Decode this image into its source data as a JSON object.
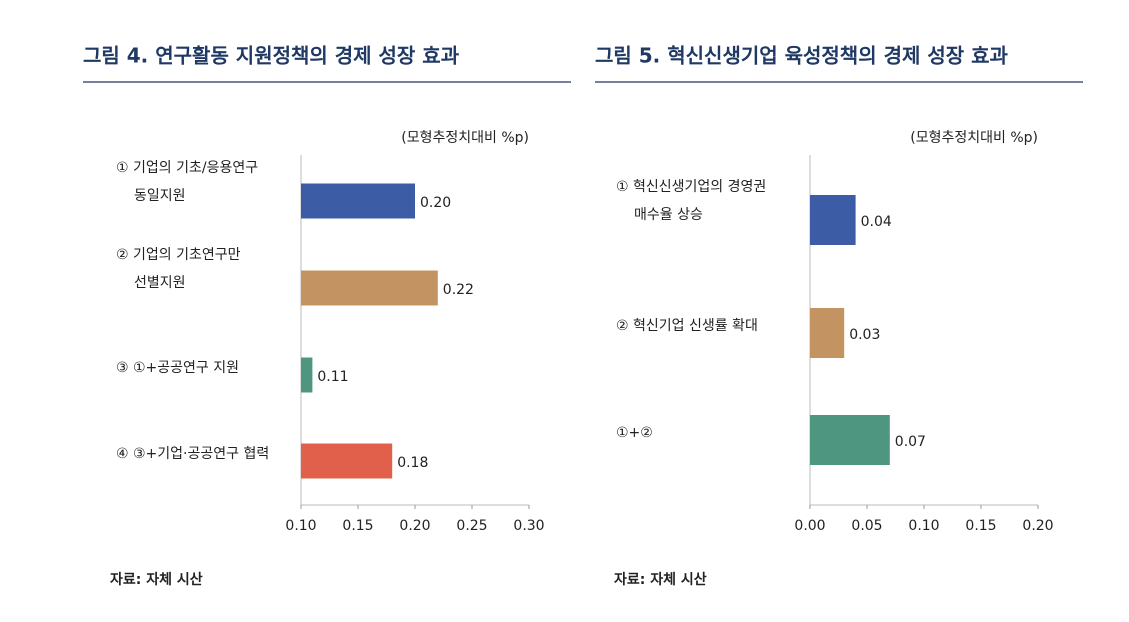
{
  "chart_data": [
    {
      "type": "bar",
      "orientation": "horizontal",
      "title": "그림 4. 연구활동 지원정책의 경제 성장 효과",
      "unit": "(모형추정치대비 %p)",
      "categories": [
        [
          "① 기업의 기초/응용연구",
          "동일지원"
        ],
        [
          "② 기업의 기초연구만",
          "선별지원"
        ],
        [
          "③ ①+공공연구 지원"
        ],
        [
          "④ ③+기업·공공연구 협력"
        ]
      ],
      "values": [
        0.2,
        0.22,
        0.11,
        0.18
      ],
      "value_labels": [
        "0.20",
        "0.22",
        "0.11",
        "0.18"
      ],
      "colors": [
        "#3c5da6",
        "#c49362",
        "#4f9680",
        "#e0604c"
      ],
      "xlim": [
        0.1,
        0.3
      ],
      "xticks": [
        {
          "value": 0.1,
          "label": "0.10"
        },
        0.15,
        {
          "value": 0.2,
          "label": "0.20"
        },
        0.25,
        {
          "value": 0.3,
          "label": "0.30"
        }
      ],
      "source": "자료: 자체 시산"
    },
    {
      "type": "bar",
      "orientation": "horizontal",
      "title": "그림 5. 혁신신생기업 육성정책의 경제 성장 효과",
      "unit": "(모형추정치대비 %p)",
      "categories": [
        [
          "① 혁신신생기업의 경영권",
          "매수율 상승"
        ],
        [
          "② 혁신기업 신생률 확대"
        ],
        [
          "①+②"
        ]
      ],
      "values": [
        0.04,
        0.03,
        0.07
      ],
      "colors": [
        "#3c5da6",
        "#c49362",
        "#4f9680"
      ],
      "xlim": [
        0,
        0.2
      ],
      "xticks": [
        {
          "value": 0,
          "label": "0.00"
        },
        0.05,
        {
          "value": 0.1,
          "label": "0.10"
        },
        0.15,
        {
          "value": 0.2,
          "label": "0.20"
        }
      ],
      "source": "자료: 자체 시산"
    }
  ]
}
